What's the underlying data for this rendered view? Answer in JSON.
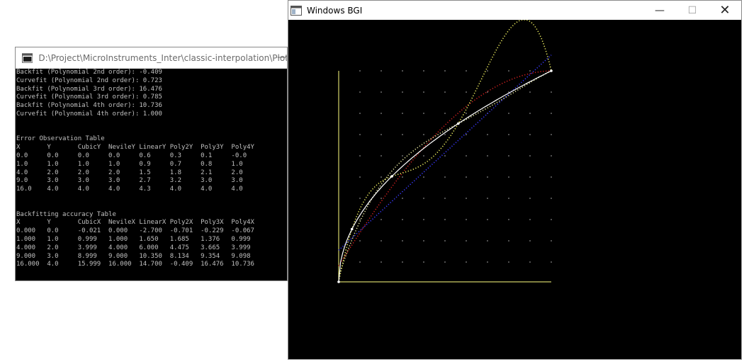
{
  "console": {
    "title": "D:\\Project\\MicroInstruments_Inter\\classic-interpolation\\Plot...",
    "minimize_glyph": "—",
    "lines": [
      "Backfit (Polynomial 2nd order): -0.409",
      "Curvefit (Polynomial 2nd order): 0.723",
      "Backfit (Polynomial 3rd order): 16.476",
      "Curvefit (Polynomial 3rd order): 0.785",
      "Backfit (Polynomial 4th order): 10.736",
      "Curvefit (Polynomial 4th order): 1.000",
      "",
      "",
      "Error Observation Table",
      "X       Y       CubicY  NevileY LinearY Poly2Y  Poly3Y  Poly4Y",
      "0.0     0.0     0.0     0.0     0.6     0.3     0.1     -0.0",
      "1.0     1.0     1.0     1.0     0.9     0.7     0.8     1.0",
      "4.0     2.0     2.0     2.0     1.5     1.8     2.1     2.0",
      "9.0     3.0     3.0     3.0     2.7     3.2     3.0     3.0",
      "16.0    4.0     4.0     4.0     4.3     4.0     4.0     4.0",
      "",
      "",
      "Backfitting accuracy Table",
      "X       Y       CubicX  NevileX LinearX Poly2X  Poly3X  Poly4X",
      "0.000   0.0     -0.021  0.000   -2.700  -0.701  -0.229  -0.067",
      "1.000   1.0     0.999   1.000   1.650   1.685   1.376   0.999",
      "4.000   2.0     3.999   4.000   6.000   4.475   3.665   3.999",
      "9.000   3.0     8.999   9.000   10.350  8.134   9.354   9.098",
      "16.000  4.0     15.999  16.000  14.700  -0.409  16.476  10.736"
    ]
  },
  "bgi": {
    "title": "Windows BGI",
    "minimize_glyph": "—",
    "maximize_glyph": "☐",
    "close_glyph": "✕"
  },
  "chart_data": {
    "type": "line",
    "xlim": [
      0,
      16
    ],
    "ylim": [
      0,
      4
    ],
    "grid": true,
    "data_points": {
      "x": [
        0,
        1,
        4,
        9,
        16
      ],
      "y": [
        0,
        1,
        2,
        3,
        4
      ]
    },
    "series": [
      {
        "color": "#3a3aff",
        "x": [
          0,
          16
        ],
        "y": [
          0.6,
          4.3
        ]
      },
      {
        "color": "#d02020",
        "x": [
          0,
          1,
          4,
          9,
          16
        ],
        "y": [
          0.3,
          0.7,
          1.8,
          3.2,
          4.0
        ]
      },
      {
        "color": "#e8e8a0",
        "x": [
          0,
          1,
          4,
          9,
          16
        ],
        "y": [
          0.1,
          0.8,
          2.1,
          3.0,
          4.0
        ]
      },
      {
        "color": "#f0f060",
        "x": [
          0,
          1,
          4,
          9,
          16
        ],
        "y": [
          0.0,
          1.0,
          2.0,
          3.0,
          4.0
        ]
      },
      {
        "color": "#ffffff",
        "x": [
          0,
          1,
          4,
          9,
          16
        ],
        "y": [
          0.0,
          1.0,
          2.0,
          3.0,
          4.0
        ]
      }
    ],
    "colors": {
      "axis": "#ffff80",
      "grid": "#b0b0b0",
      "background": "#000000"
    }
  }
}
